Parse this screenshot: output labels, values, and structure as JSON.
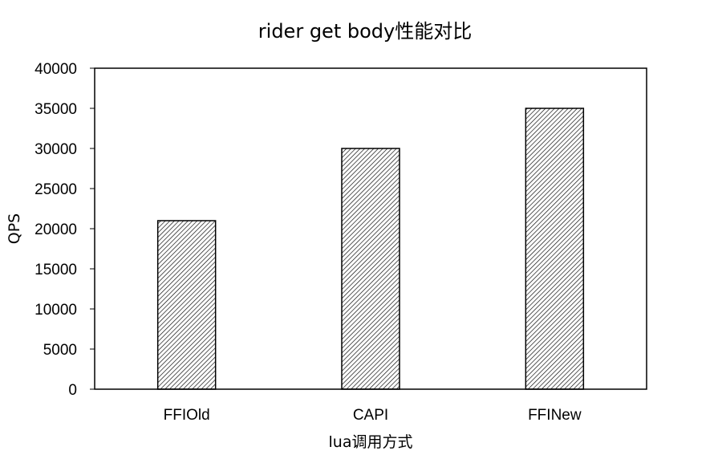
{
  "chart_data": {
    "type": "bar",
    "title": "rider get body性能对比",
    "xlabel": "lua调用方式",
    "ylabel": "QPS",
    "categories": [
      "FFIOld",
      "CAPI",
      "FFINew"
    ],
    "values": [
      21000,
      30000,
      35000
    ],
    "ylim": [
      0,
      40000
    ],
    "yticks": [
      0,
      5000,
      10000,
      15000,
      20000,
      25000,
      30000,
      35000,
      40000
    ],
    "grid": false,
    "legend": "none",
    "bar_fill": "#ffffff",
    "bar_hatch_color": "#000000",
    "bar_stroke": "#000000",
    "axis_color": "#000000"
  }
}
